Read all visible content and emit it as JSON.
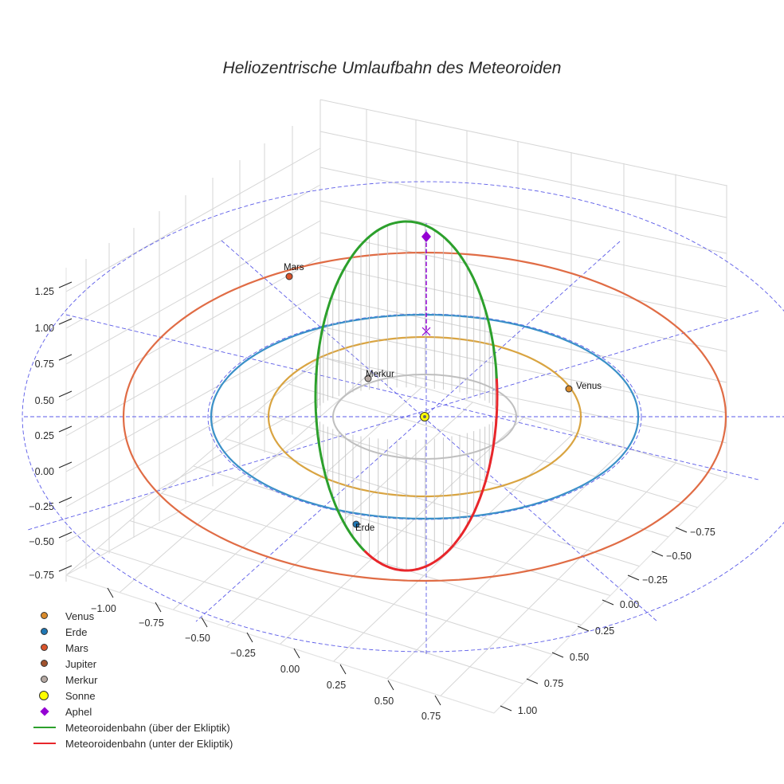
{
  "chart_data": {
    "type": "line",
    "title": "Heliozentrische Umlaufbahn des Meteoroiden",
    "xlabel": "",
    "ylabel": "",
    "zlabel": "",
    "axis_ticks": {
      "x": [
        "−1.00",
        "−0.75",
        "−0.50",
        "−0.25",
        "0.00",
        "0.25",
        "0.50",
        "0.75"
      ],
      "y": [
        "−0.75",
        "−0.50",
        "−0.25",
        "0.00",
        "0.25",
        "0.50",
        "0.75",
        "1.00"
      ],
      "z": [
        "−0.75",
        "−0.50",
        "−0.25",
        "0.00",
        "0.25",
        "0.50",
        "0.75",
        "1.00",
        "1.25"
      ]
    },
    "planets": [
      {
        "name": "Venus",
        "color": "#d98b2b",
        "orbit_color": "#d9a441",
        "label": "Venus"
      },
      {
        "name": "Erde",
        "color": "#1f77b4",
        "orbit_color": "#3a90c8",
        "label": "Erde"
      },
      {
        "name": "Mars",
        "color": "#d9542b",
        "orbit_color": "#e06c45",
        "label": "Mars"
      },
      {
        "name": "Jupiter",
        "color": "#a0522d",
        "orbit_color": "#a0522d",
        "label": ""
      },
      {
        "name": "Merkur",
        "color": "#b5a9a3",
        "orbit_color": "#bfbfbf",
        "label": "Merkur"
      }
    ],
    "sun": {
      "name": "Sonne",
      "color": "#ffff00"
    },
    "aphel": {
      "name": "Aphel",
      "color": "#9400d3"
    },
    "meteoroid": {
      "above": {
        "name": "Meteoroidenbahn (über der Ekliptik)",
        "color": "#2ca02c"
      },
      "below": {
        "name": "Meteoroidenbahn (unter der Ekliptik)",
        "color": "#e8262b"
      }
    },
    "legend": [
      {
        "label": "Venus",
        "kind": "dot",
        "color": "#d98b2b"
      },
      {
        "label": "Erde",
        "kind": "dot",
        "color": "#1f77b4"
      },
      {
        "label": "Mars",
        "kind": "dot",
        "color": "#d9542b"
      },
      {
        "label": "Jupiter",
        "kind": "dot",
        "color": "#a0522d"
      },
      {
        "label": "Merkur",
        "kind": "dot",
        "color": "#b5a9a3"
      },
      {
        "label": "Sonne",
        "kind": "bigdot",
        "color": "#ffff00"
      },
      {
        "label": "Aphel",
        "kind": "diamond",
        "color": "#9400d3"
      },
      {
        "label": "Meteoroidenbahn (über der Ekliptik)",
        "kind": "line",
        "color": "#2ca02c"
      },
      {
        "label": "Meteoroidenbahn (unter der Ekliptik)",
        "kind": "line",
        "color": "#e8262b"
      }
    ],
    "legend_position": "bottom-left"
  }
}
